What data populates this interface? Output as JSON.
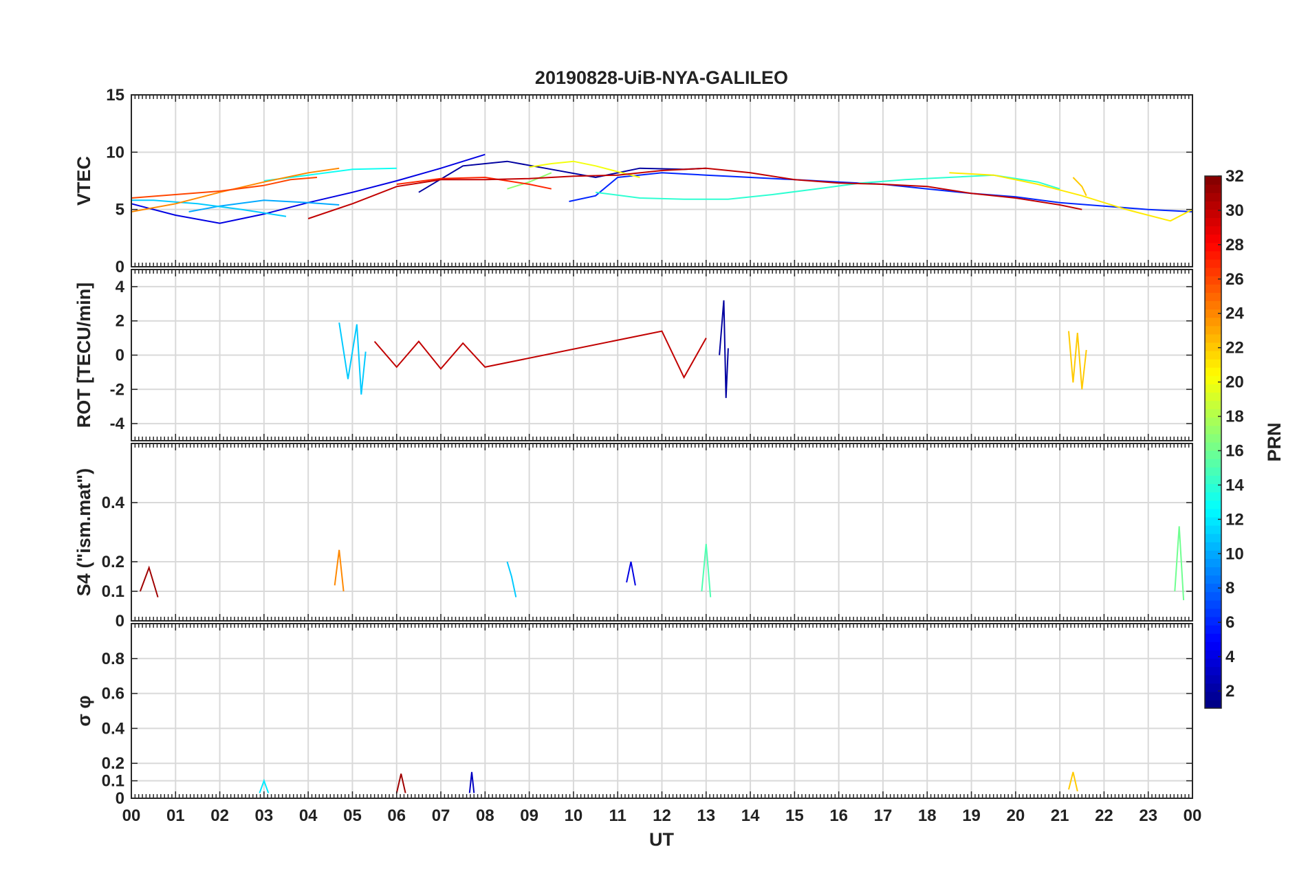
{
  "chart_data": {
    "type": "line",
    "title": "20190828-UiB-NYA-GALILEO",
    "xlabel": "UT",
    "x_tick_labels": [
      "00",
      "01",
      "02",
      "03",
      "04",
      "05",
      "06",
      "07",
      "08",
      "09",
      "10",
      "11",
      "12",
      "13",
      "14",
      "15",
      "16",
      "17",
      "18",
      "19",
      "20",
      "21",
      "22",
      "23",
      "00"
    ],
    "xlim": [
      0,
      24
    ],
    "grid": true,
    "colorbar": {
      "label": "PRN",
      "range": [
        1,
        32
      ],
      "ticks": [
        "2",
        "4",
        "6",
        "8",
        "10",
        "12",
        "14",
        "16",
        "18",
        "20",
        "22",
        "24",
        "26",
        "28",
        "30",
        "32"
      ],
      "tick_values": [
        2,
        4,
        6,
        8,
        10,
        12,
        14,
        16,
        18,
        20,
        22,
        24,
        26,
        28,
        30,
        32
      ],
      "colormap": "jet",
      "placement": "right"
    },
    "panels": [
      {
        "id": "vtec",
        "ylabel": "VTEC",
        "ylim": [
          0,
          15
        ],
        "yticks": [
          0,
          5,
          10,
          15
        ],
        "ytick_labels": [
          "0",
          "5",
          "10",
          "15"
        ],
        "series": [
          {
            "prn": 2,
            "x": [
              6.5,
              7.5,
              8.5,
              9.5,
              10.5,
              11.5,
              12.5,
              13.0
            ],
            "y": [
              6.5,
              8.8,
              9.2,
              8.5,
              7.8,
              8.6,
              8.5,
              8.6
            ]
          },
          {
            "prn": 4,
            "x": [
              0,
              1,
              2,
              3,
              4,
              5,
              6,
              7,
              8
            ],
            "y": [
              5.5,
              4.5,
              3.8,
              4.6,
              5.6,
              6.5,
              7.5,
              8.6,
              9.8
            ]
          },
          {
            "prn": 6,
            "x": [
              9.9,
              10.5,
              11,
              12,
              13,
              14,
              15,
              16,
              17,
              18,
              19,
              20,
              21,
              22,
              23,
              24
            ],
            "y": [
              5.7,
              6.2,
              7.8,
              8.2,
              8.0,
              7.8,
              7.6,
              7.4,
              7.2,
              6.8,
              6.4,
              6.1,
              5.6,
              5.3,
              5.0,
              4.8
            ]
          },
          {
            "prn": 10,
            "x": [
              1.3,
              2,
              3,
              4,
              4.7
            ],
            "y": [
              4.8,
              5.3,
              5.8,
              5.6,
              5.4
            ]
          },
          {
            "prn": 11,
            "x": [
              0,
              0.5,
              1.5,
              2.5,
              3.5
            ],
            "y": [
              5.8,
              5.8,
              5.5,
              5.0,
              4.4
            ]
          },
          {
            "prn": 13,
            "x": [
              3,
              4,
              5,
              6
            ],
            "y": [
              7.5,
              8.0,
              8.5,
              8.6
            ]
          },
          {
            "prn": 14,
            "x": [
              10.5,
              11.5,
              12.5,
              13.5,
              14.5,
              15.5,
              16.5,
              17.5,
              18.5,
              19.5,
              20.5,
              21
            ],
            "y": [
              6.5,
              6.0,
              5.9,
              5.9,
              6.3,
              6.8,
              7.3,
              7.6,
              7.8,
              8.0,
              7.4,
              6.8
            ]
          },
          {
            "prn": 17,
            "x": [
              8.5,
              9.0,
              9.5
            ],
            "y": [
              6.8,
              7.4,
              8.2
            ]
          },
          {
            "prn": 20,
            "x": [
              9,
              9.5,
              10,
              10.5,
              11,
              11.5
            ],
            "y": [
              8.7,
              9.0,
              9.2,
              8.8,
              8.3,
              7.8
            ]
          },
          {
            "prn": 21,
            "x": [
              18.5,
              19.5,
              20.5,
              21.5,
              22.5,
              23.5,
              24
            ],
            "y": [
              8.2,
              8.0,
              7.2,
              6.2,
              5.0,
              4.0,
              5.0
            ]
          },
          {
            "prn": 22,
            "x": [
              21.3,
              21.5,
              21.6
            ],
            "y": [
              7.8,
              7.0,
              6.2
            ]
          },
          {
            "prn": 24,
            "x": [
              0,
              1,
              2,
              3,
              4,
              4.7
            ],
            "y": [
              4.8,
              5.5,
              6.5,
              7.4,
              8.2,
              8.6
            ]
          },
          {
            "prn": 26,
            "x": [
              0,
              1,
              2,
              3,
              3.6,
              4.2
            ],
            "y": [
              6.0,
              6.3,
              6.6,
              7.1,
              7.6,
              7.8
            ]
          },
          {
            "prn": 27,
            "x": [
              6,
              7,
              8,
              9,
              9.5
            ],
            "y": [
              7.2,
              7.7,
              7.8,
              7.2,
              6.8
            ]
          },
          {
            "prn": 30,
            "x": [
              4,
              5,
              6,
              7,
              8,
              9,
              10,
              11,
              12,
              13,
              14,
              15,
              16,
              17,
              18,
              19,
              20,
              21,
              21.5
            ],
            "y": [
              4.2,
              5.5,
              7.0,
              7.6,
              7.6,
              7.7,
              7.9,
              8.0,
              8.4,
              8.6,
              8.2,
              7.6,
              7.3,
              7.2,
              7.0,
              6.4,
              6.0,
              5.4,
              5.0
            ]
          }
        ]
      },
      {
        "id": "rot",
        "ylabel": "ROT [TECU/min]",
        "ylim": [
          -5,
          5
        ],
        "yticks": [
          -4,
          -2,
          0,
          2,
          4
        ],
        "ytick_labels": [
          "-4",
          "-2",
          "0",
          "2",
          "4"
        ],
        "series": [
          {
            "prn": 2,
            "x": [
              13.3,
              13.4,
              13.45,
              13.5
            ],
            "y": [
              0,
              3.2,
              -2.5,
              0.4
            ]
          },
          {
            "prn": 11,
            "x": [
              4.7,
              4.9,
              5.1,
              5.2,
              5.3
            ],
            "y": [
              1.9,
              -1.4,
              1.8,
              -2.3,
              0.2
            ]
          },
          {
            "prn": 22,
            "x": [
              21.2,
              21.3,
              21.4,
              21.5,
              21.6
            ],
            "y": [
              1.4,
              -1.6,
              1.3,
              -2.0,
              0.3
            ]
          },
          {
            "prn": 30,
            "x": [
              5.5,
              6,
              6.5,
              7,
              7.5,
              8,
              12,
              12.5,
              13
            ],
            "y": [
              0.8,
              -0.7,
              0.8,
              -0.8,
              0.7,
              -0.7,
              1.4,
              -1.3,
              1.0
            ]
          }
        ]
      },
      {
        "id": "s4",
        "ylabel": "S4 (\"ism.mat\")",
        "ylim": [
          0,
          0.6
        ],
        "yticks": [
          0,
          0.1,
          0.2,
          0.4
        ],
        "ytick_labels": [
          "0",
          "0.1",
          "0.2",
          "0.4"
        ],
        "series": [
          {
            "prn": 4,
            "x": [
              11.2,
              11.3,
              11.4
            ],
            "y": [
              0.13,
              0.2,
              0.12
            ]
          },
          {
            "prn": 11,
            "x": [
              8.5,
              8.6,
              8.7
            ],
            "y": [
              0.2,
              0.15,
              0.08
            ]
          },
          {
            "prn": 15,
            "x": [
              12.9,
              13.0,
              13.1
            ],
            "y": [
              0.1,
              0.26,
              0.08
            ]
          },
          {
            "prn": 16,
            "x": [
              23.6,
              23.7,
              23.8
            ],
            "y": [
              0.1,
              0.32,
              0.07
            ]
          },
          {
            "prn": 24,
            "x": [
              4.6,
              4.7,
              4.8
            ],
            "y": [
              0.12,
              0.24,
              0.1
            ]
          },
          {
            "prn": 31,
            "x": [
              0.2,
              0.4,
              0.6
            ],
            "y": [
              0.1,
              0.18,
              0.08
            ]
          }
        ]
      },
      {
        "id": "sigma_phi",
        "ylabel": "σ φ",
        "ylim": [
          0,
          1
        ],
        "yticks": [
          0,
          0.1,
          0.2,
          0.4,
          0.6,
          0.8
        ],
        "ytick_labels": [
          "0",
          "0.1",
          "0.2",
          "0.4",
          "0.6",
          "0.8"
        ],
        "series": [
          {
            "prn": 3,
            "x": [
              7.65,
              7.7,
              7.75
            ],
            "y": [
              0.03,
              0.15,
              0.03
            ]
          },
          {
            "prn": 12,
            "x": [
              2.9,
              3.0,
              3.1
            ],
            "y": [
              0.03,
              0.1,
              0.03
            ]
          },
          {
            "prn": 22,
            "x": [
              21.2,
              21.3,
              21.4
            ],
            "y": [
              0.05,
              0.15,
              0.04
            ]
          },
          {
            "prn": 31,
            "x": [
              6.0,
              6.1,
              6.2
            ],
            "y": [
              0.03,
              0.14,
              0.03
            ]
          }
        ]
      }
    ]
  }
}
